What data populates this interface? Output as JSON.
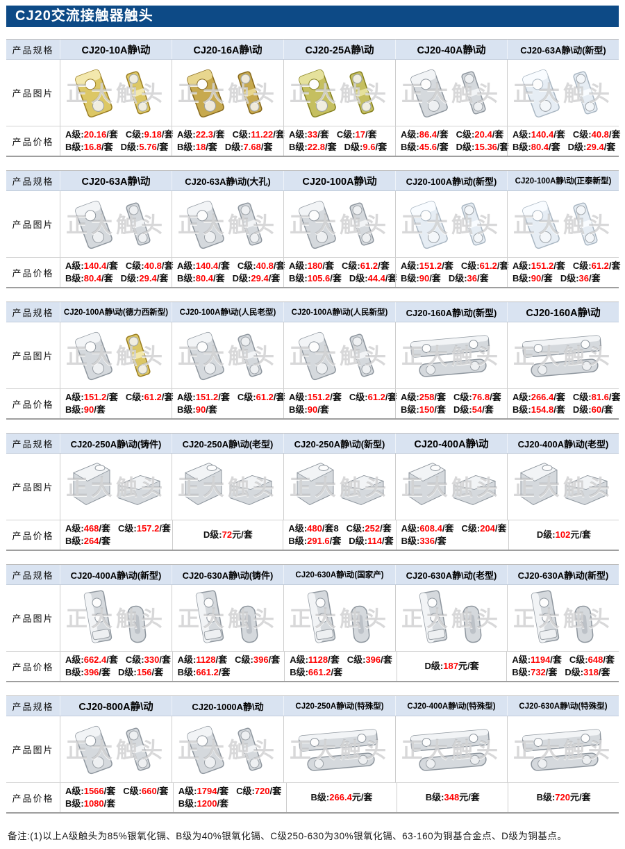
{
  "page_title": "CJ20交流接触器触头",
  "watermark": "正大触头",
  "row_labels": {
    "spec": "产品规格",
    "image": "产品图片",
    "price": "产品价格"
  },
  "colors": {
    "banner_bg": "#0d4a86",
    "banner_text": "#ffffff",
    "header_bg": "#d9e3f1",
    "price_value": "#ff0000",
    "text": "#000000"
  },
  "note": "备注:(1)以上A级触头为85%银氧化镉、B级为40%银氧化镉、C级250-630为30%银氧化镉、63-160为铜基合金点、D级为铜基点。",
  "tables": [
    {
      "products": [
        {
          "model": "CJ20-10A静\\动",
          "photo": "gold-flat",
          "lines": [
            [
              {
                "k": "A级:",
                "v": "20.16",
                "s": "/套"
              },
              {
                "k": "C级:",
                "v": "9.18",
                "s": "/套"
              }
            ],
            [
              {
                "k": "B级:",
                "v": "16.8",
                "s": "/套"
              },
              {
                "k": "D级:",
                "v": "5.76",
                "s": "/套"
              }
            ]
          ]
        },
        {
          "model": "CJ20-16A静\\动",
          "photo": "brass-flat",
          "lines": [
            [
              {
                "k": "A级:",
                "v": "22.3",
                "s": "/套"
              },
              {
                "k": "C级:",
                "v": "11.22",
                "s": "/套"
              }
            ],
            [
              {
                "k": "B级:",
                "v": "18",
                "s": "/套"
              },
              {
                "k": "D级:",
                "v": "7.68",
                "s": "/套"
              }
            ]
          ]
        },
        {
          "model": "CJ20-25A静\\动",
          "photo": "olive-flat",
          "lines": [
            [
              {
                "k": "A级:",
                "v": "33",
                "s": "/套"
              },
              {
                "k": "C级:",
                "v": "17",
                "s": "/套"
              }
            ],
            [
              {
                "k": "B级:",
                "v": "22.8",
                "s": "/套"
              },
              {
                "k": "D级:",
                "v": "9.6",
                "s": "/套"
              }
            ]
          ]
        },
        {
          "model": "CJ20-40A静\\动",
          "photo": "silver-flat",
          "lines": [
            [
              {
                "k": "A级:",
                "v": "86.4",
                "s": "/套"
              },
              {
                "k": "C级:",
                "v": "20.4",
                "s": "/套"
              }
            ],
            [
              {
                "k": "B级:",
                "v": "45.6",
                "s": "/套"
              },
              {
                "k": "D级:",
                "v": "15.36",
                "s": "/套"
              }
            ]
          ]
        },
        {
          "model": "CJ20-63A静\\动(新型)",
          "photo": "white-flat",
          "lines": [
            [
              {
                "k": "A级:",
                "v": "140.4",
                "s": "/套"
              },
              {
                "k": "C级:",
                "v": "40.8",
                "s": "/套"
              }
            ],
            [
              {
                "k": "B级:",
                "v": "80.4",
                "s": "/套"
              },
              {
                "k": "D级:",
                "v": "29.4",
                "s": "/套"
              }
            ]
          ]
        }
      ]
    },
    {
      "products": [
        {
          "model": "CJ20-63A静\\动",
          "photo": "silver-flat",
          "lines": [
            [
              {
                "k": "A级:",
                "v": "140.4",
                "s": "/套"
              },
              {
                "k": "C级:",
                "v": "40.8",
                "s": "/套"
              }
            ],
            [
              {
                "k": "B级:",
                "v": "80.4",
                "s": "/套"
              },
              {
                "k": "D级:",
                "v": "29.4",
                "s": "/套"
              }
            ]
          ]
        },
        {
          "model": "CJ20-63A静\\动(大孔)",
          "photo": "silver-flat",
          "lines": [
            [
              {
                "k": "A级:",
                "v": "140.4",
                "s": "/套"
              },
              {
                "k": "C级:",
                "v": "40.8",
                "s": "/套"
              }
            ],
            [
              {
                "k": "B级:",
                "v": "80.4",
                "s": "/套"
              },
              {
                "k": "D级:",
                "v": "29.4",
                "s": "/套"
              }
            ]
          ]
        },
        {
          "model": "CJ20-100A静\\动",
          "photo": "silver-flat",
          "lines": [
            [
              {
                "k": "A级:",
                "v": "180",
                "s": "/套"
              },
              {
                "k": "C级:",
                "v": "61.2",
                "s": "/套"
              }
            ],
            [
              {
                "k": "B级:",
                "v": "105.6",
                "s": "/套"
              },
              {
                "k": "D级:",
                "v": "44.4",
                "s": "/套"
              }
            ]
          ]
        },
        {
          "model": "CJ20-100A静\\动(新型)",
          "photo": "white-flat",
          "lines": [
            [
              {
                "k": "A级:",
                "v": "151.2",
                "s": "/套"
              },
              {
                "k": "C级:",
                "v": "61.2",
                "s": "/套"
              }
            ],
            [
              {
                "k": "B级:",
                "v": "90",
                "s": "/套"
              },
              {
                "k": "D级:",
                "v": "36",
                "s": "/套"
              }
            ]
          ]
        },
        {
          "model": "CJ20-100A静\\动(正泰新型)",
          "photo": "white-flat",
          "lines": [
            [
              {
                "k": "A级:",
                "v": "151.2",
                "s": "/套"
              },
              {
                "k": "C级:",
                "v": "61.2",
                "s": "/套"
              }
            ],
            [
              {
                "k": "B级:",
                "v": "90",
                "s": "/套"
              },
              {
                "k": "D级:",
                "v": "36",
                "s": "/套"
              }
            ]
          ]
        }
      ]
    },
    {
      "products": [
        {
          "model": "CJ20-100A静\\动(德力西新型)",
          "photo": "mixed-flat",
          "lines": [
            [
              {
                "k": "A级:",
                "v": "151.2",
                "s": "/套"
              },
              {
                "k": "C级:",
                "v": "61.2",
                "s": "/套"
              }
            ],
            [
              {
                "k": "B级:",
                "v": "90",
                "s": "/套"
              }
            ]
          ]
        },
        {
          "model": "CJ20-100A静\\动(人民老型)",
          "photo": "silver-flat",
          "lines": [
            [
              {
                "k": "A级:",
                "v": "151.2",
                "s": "/套"
              },
              {
                "k": "C级:",
                "v": "61.2",
                "s": "/套"
              }
            ],
            [
              {
                "k": "B级:",
                "v": "90",
                "s": "/套"
              }
            ]
          ]
        },
        {
          "model": "CJ20-100A静\\动(人民新型)",
          "photo": "silver-flat",
          "lines": [
            [
              {
                "k": "A级:",
                "v": "151.2",
                "s": "/套"
              },
              {
                "k": "C级:",
                "v": "61.2",
                "s": "/套"
              }
            ],
            [
              {
                "k": "B级:",
                "v": "90",
                "s": "/套"
              }
            ]
          ]
        },
        {
          "model": "CJ20-160A静\\动(新型)",
          "photo": "silver-long",
          "lines": [
            [
              {
                "k": "A级:",
                "v": "258",
                "s": "/套"
              },
              {
                "k": "C级:",
                "v": "76.8",
                "s": "/套"
              }
            ],
            [
              {
                "k": "B级:",
                "v": "150",
                "s": "/套"
              },
              {
                "k": "D级:",
                "v": "54",
                "s": "/套"
              }
            ]
          ]
        },
        {
          "model": "CJ20-160A静\\动",
          "photo": "silver-long",
          "lines": [
            [
              {
                "k": "A级:",
                "v": "266.4",
                "s": "/套"
              },
              {
                "k": "C级:",
                "v": "81.6",
                "s": "/套"
              }
            ],
            [
              {
                "k": "B级:",
                "v": "154.8",
                "s": "/套"
              },
              {
                "k": "D级:",
                "v": "60",
                "s": "/套"
              }
            ]
          ]
        }
      ]
    },
    {
      "products": [
        {
          "model": "CJ20-250A静\\动(铸件)",
          "photo": "silver-block",
          "lines": [
            [
              {
                "k": "A级:",
                "v": "468",
                "s": "/套"
              },
              {
                "k": "C级:",
                "v": "157.2",
                "s": "/套"
              }
            ],
            [
              {
                "k": "B级:",
                "v": "264",
                "s": "/套"
              }
            ]
          ]
        },
        {
          "model": "CJ20-250A静\\动(老型)",
          "photo": "silver-block",
          "lines": [
            [
              {
                "k": "D级:",
                "v": "72",
                "s": "元/套"
              }
            ]
          ]
        },
        {
          "model": "CJ20-250A静\\动(新型)",
          "photo": "silver-block",
          "lines": [
            [
              {
                "k": "A级:",
                "v": "480",
                "s": "/套8"
              },
              {
                "k": "C级:",
                "v": "252",
                "s": "/套"
              }
            ],
            [
              {
                "k": "B级:",
                "v": "291.6",
                "s": "/套"
              },
              {
                "k": "D级:",
                "v": "114",
                "s": "/套"
              }
            ]
          ]
        },
        {
          "model": "CJ20-400A静\\动",
          "photo": "silver-block",
          "lines": [
            [
              {
                "k": "A级:",
                "v": "608.4",
                "s": "/套"
              },
              {
                "k": "C级:",
                "v": "204",
                "s": "/套"
              }
            ],
            [
              {
                "k": "B级:",
                "v": "336",
                "s": "/套"
              }
            ]
          ]
        },
        {
          "model": "CJ20-400A静\\动(老型)",
          "photo": "silver-block",
          "lines": [
            [
              {
                "k": "D级:",
                "v": "102",
                "s": "元/套"
              }
            ]
          ]
        }
      ]
    },
    {
      "products": [
        {
          "model": "CJ20-400A静\\动(新型)",
          "photo": "silver-tall",
          "lines": [
            [
              {
                "k": "A级:",
                "v": "662.4",
                "s": "/套"
              },
              {
                "k": "C级:",
                "v": "330",
                "s": "/套"
              }
            ],
            [
              {
                "k": "B级:",
                "v": "396",
                "s": "/套"
              },
              {
                "k": "D级:",
                "v": "156",
                "s": "/套"
              }
            ]
          ]
        },
        {
          "model": "CJ20-630A静\\动(铸件)",
          "photo": "silver-tall",
          "lines": [
            [
              {
                "k": "A级:",
                "v": "1128",
                "s": "/套"
              },
              {
                "k": "C级:",
                "v": "396",
                "s": "/套"
              }
            ],
            [
              {
                "k": "B级:",
                "v": "661.2",
                "s": "/套"
              }
            ]
          ]
        },
        {
          "model": "CJ20-630A静\\动(国家产)",
          "photo": "silver-tall",
          "lines": [
            [
              {
                "k": "A级:",
                "v": "1128",
                "s": "/套"
              },
              {
                "k": "C级:",
                "v": "396",
                "s": "/套"
              }
            ],
            [
              {
                "k": "B级:",
                "v": "661.2",
                "s": "/套"
              }
            ]
          ]
        },
        {
          "model": "CJ20-630A静\\动(老型)",
          "photo": "silver-tall",
          "lines": [
            [
              {
                "k": "D级:",
                "v": "187",
                "s": "元/套"
              }
            ]
          ]
        },
        {
          "model": "CJ20-630A静\\动(新型)",
          "photo": "silver-tall",
          "lines": [
            [
              {
                "k": "A级:",
                "v": "1194",
                "s": "/套"
              },
              {
                "k": "C级:",
                "v": "648",
                "s": "/套"
              }
            ],
            [
              {
                "k": "B级:",
                "v": "732",
                "s": "/套"
              },
              {
                "k": "D级:",
                "v": "318",
                "s": "/套"
              }
            ]
          ]
        }
      ]
    },
    {
      "products": [
        {
          "model": "CJ20-800A静\\动",
          "photo": "silver-flat",
          "lines": [
            [
              {
                "k": "A级:",
                "v": "1566",
                "s": "/套"
              },
              {
                "k": "C级:",
                "v": "660",
                "s": "/套"
              }
            ],
            [
              {
                "k": "B级:",
                "v": "1080",
                "s": "/套"
              }
            ]
          ]
        },
        {
          "model": "CJ20-1000A静\\动",
          "photo": "silver-flat",
          "lines": [
            [
              {
                "k": "A级:",
                "v": "1794",
                "s": "/套"
              },
              {
                "k": "C级:",
                "v": "720",
                "s": "/套"
              }
            ],
            [
              {
                "k": "B级:",
                "v": "1200",
                "s": "/套"
              }
            ]
          ]
        },
        {
          "model": "CJ20-250A静\\动(特殊型)",
          "photo": "silver-long",
          "lines": [
            [
              {
                "k": "B级:",
                "v": "266.4",
                "s": "元/套"
              }
            ]
          ]
        },
        {
          "model": "CJ20-400A静\\动(特殊型)",
          "photo": "silver-long",
          "lines": [
            [
              {
                "k": "B级:",
                "v": "348",
                "s": "元/套"
              }
            ]
          ]
        },
        {
          "model": "CJ20-630A静\\动(特殊型)",
          "photo": "silver-long",
          "lines": [
            [
              {
                "k": "B级:",
                "v": "720",
                "s": "元/套"
              }
            ]
          ]
        }
      ]
    }
  ]
}
